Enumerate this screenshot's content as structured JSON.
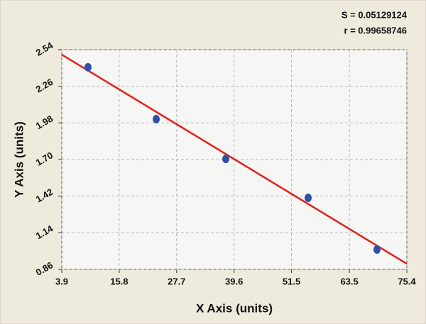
{
  "chart_data": {
    "type": "scatter",
    "x_label": "X Axis (units)",
    "y_label": "Y Axis (units)",
    "annotations": [
      "S = 0.05129124",
      "r = 0.99658746"
    ],
    "x": [
      9.34,
      23.47,
      37.89,
      54.95,
      69.22
    ],
    "values": [
      2.405,
      2.009,
      1.705,
      1.407,
      1.012
    ],
    "color": "#2f4fa8",
    "fit_line": {
      "x": [
        3.9,
        75.4
      ],
      "y": [
        2.502,
        0.903
      ],
      "color": "#e3211c"
    },
    "xlim": [
      3.9,
      75.4
    ],
    "xticks": [
      3.9,
      15.8,
      27.7,
      39.6,
      51.5,
      63.5,
      75.4
    ],
    "ylim": [
      0.86,
      2.54
    ],
    "yticks": [
      0.86,
      1.14,
      1.42,
      {
        "value": 1.7,
        "label": "1.70"
      },
      1.98,
      2.26,
      2.54
    ],
    "grid": true
  }
}
